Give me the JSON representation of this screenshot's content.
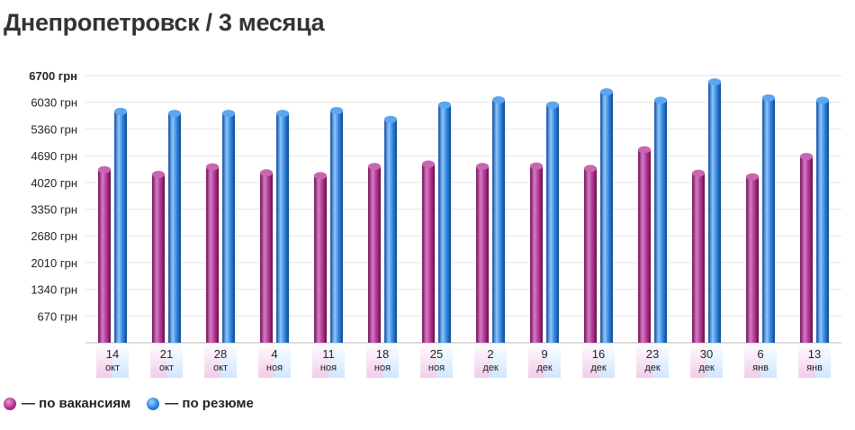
{
  "title": "Днепропетровск / 3 месяца",
  "legend": {
    "vacancies_label": "— по вакансиям",
    "resumes_label": "— по резюме"
  },
  "colors": {
    "vacancies": "#a02a85",
    "resumes": "#2a7fd8"
  },
  "chart_data": {
    "type": "bar",
    "title": "Днепропетровск / 3 месяца",
    "xlabel": "",
    "ylabel": "",
    "ylim": [
      0,
      6700
    ],
    "y_ticks": [
      "670 грн",
      "1340 грн",
      "2010 грн",
      "2680 грн",
      "3350 грн",
      "4020 грн",
      "4690 грн",
      "5360 грн",
      "6030 грн",
      "6700 грн"
    ],
    "y_tick_values": [
      670,
      1340,
      2010,
      2680,
      3350,
      4020,
      4690,
      5360,
      6030,
      6700
    ],
    "categories": [
      {
        "day": "14",
        "month": "окт"
      },
      {
        "day": "21",
        "month": "окт"
      },
      {
        "day": "28",
        "month": "окт"
      },
      {
        "day": "4",
        "month": "ноя"
      },
      {
        "day": "11",
        "month": "ноя"
      },
      {
        "day": "18",
        "month": "ноя"
      },
      {
        "day": "25",
        "month": "ноя"
      },
      {
        "day": "2",
        "month": "дек"
      },
      {
        "day": "9",
        "month": "дек"
      },
      {
        "day": "16",
        "month": "дек"
      },
      {
        "day": "23",
        "month": "дек"
      },
      {
        "day": "30",
        "month": "дек"
      },
      {
        "day": "6",
        "month": "янв"
      },
      {
        "day": "13",
        "month": "янв"
      }
    ],
    "series": [
      {
        "name": "по вакансиям",
        "values": [
          4340,
          4220,
          4410,
          4260,
          4190,
          4420,
          4480,
          4420,
          4430,
          4370,
          4840,
          4250,
          4160,
          4670
        ]
      },
      {
        "name": "по резюме",
        "values": [
          5800,
          5750,
          5750,
          5750,
          5820,
          5600,
          5960,
          6090,
          5960,
          6290,
          6080,
          6540,
          6140,
          6080
        ]
      }
    ],
    "grid": true,
    "legend_position": "bottom-left"
  }
}
